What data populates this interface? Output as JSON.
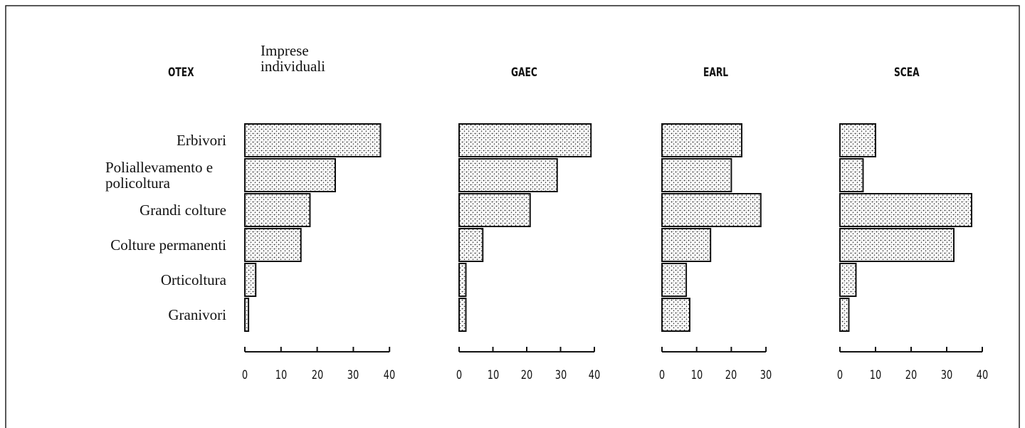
{
  "category_axis_label": "OTEX",
  "categories": [
    "Erbivori",
    "Poliallevamento e policoltura",
    "Grandi colture",
    "Colture permanenti",
    "Orticoltura",
    "Granivori"
  ],
  "chart_data": [
    {
      "type": "bar",
      "title": "Imprese individuali",
      "values": [
        37.5,
        25,
        18,
        15.5,
        3,
        1
      ],
      "xlim": [
        0,
        40
      ],
      "xticks": [
        0,
        10,
        20,
        30,
        40
      ],
      "color": "#555555"
    },
    {
      "type": "bar",
      "title": "GAEC",
      "values": [
        39,
        29,
        21,
        7,
        2,
        2
      ],
      "xlim": [
        0,
        40
      ],
      "xticks": [
        0,
        10,
        20,
        30,
        40
      ],
      "color": "#555555"
    },
    {
      "type": "bar",
      "title": "EARL",
      "values": [
        23,
        20,
        28.5,
        14,
        7,
        8
      ],
      "xlim": [
        0,
        30
      ],
      "xticks": [
        0,
        10,
        20,
        30
      ],
      "color": "#555555"
    },
    {
      "type": "bar",
      "title": "SCEA",
      "values": [
        10,
        6.5,
        37,
        32,
        4.5,
        2.5
      ],
      "xlim": [
        0,
        40
      ],
      "xticks": [
        0,
        10,
        20,
        30,
        40
      ],
      "color": "#555555"
    }
  ]
}
